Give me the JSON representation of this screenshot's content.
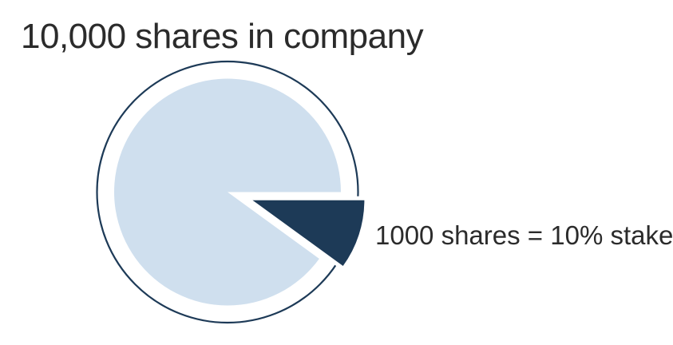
{
  "title": {
    "text": "10,000 shares in company"
  },
  "annotation": {
    "text": "1000 shares = 10% stake"
  },
  "colors": {
    "background": "#ffffff",
    "title_text": "#2b2b2b",
    "annotation_text": "#2b2b2b",
    "pie_fill": "#cfdfee",
    "stake_fill": "#1d3a57",
    "ring_stroke": "#1d3a57",
    "separator": "#ffffff"
  },
  "chart_data": {
    "type": "pie",
    "title": "10,000 shares in company",
    "total_shares": 10000,
    "slices": [
      {
        "name": "remaining-shares",
        "shares": 9000,
        "percent": 90,
        "color": "#cfdfee",
        "exploded": false,
        "label": ""
      },
      {
        "name": "stake",
        "shares": 1000,
        "percent": 10,
        "color": "#1d3a57",
        "exploded": true,
        "label": "1000 shares = 10% stake"
      }
    ],
    "annotation": "1000 shares = 10% stake",
    "outer_ring": true,
    "legend_position": "right-of-exploded-slice",
    "grid": false
  }
}
